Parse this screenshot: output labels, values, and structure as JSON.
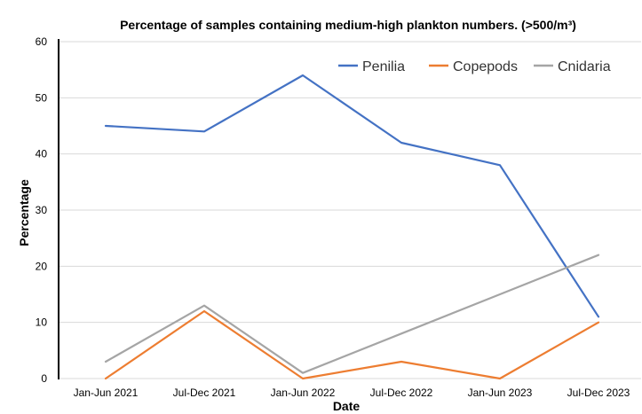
{
  "chart_data": {
    "type": "line",
    "title": "Percentage of samples containing medium-high plankton numbers. (>500/m³)",
    "xlabel": "Date",
    "ylabel": "Percentage",
    "categories": [
      "Jan-Jun 2021",
      "Jul-Dec 2021",
      "Jan-Jun 2022",
      "Jul-Dec 2022",
      "Jan-Jun 2023",
      "Jul-Dec 2023"
    ],
    "ylim": [
      0,
      60
    ],
    "yticks": [
      "0",
      "10",
      "20",
      "30",
      "40",
      "50",
      "60"
    ],
    "grid": true,
    "legend_position": "top-right",
    "series": [
      {
        "name": "Penilia",
        "color": "#4472c4",
        "values": [
          45,
          44,
          54,
          42,
          38,
          11
        ]
      },
      {
        "name": "Copepods",
        "color": "#ed7d31",
        "values": [
          0,
          12,
          0,
          3,
          0,
          10
        ]
      },
      {
        "name": "Cnidaria",
        "color": "#a5a5a5",
        "values": [
          3,
          13,
          1,
          8,
          15,
          22
        ]
      }
    ]
  }
}
